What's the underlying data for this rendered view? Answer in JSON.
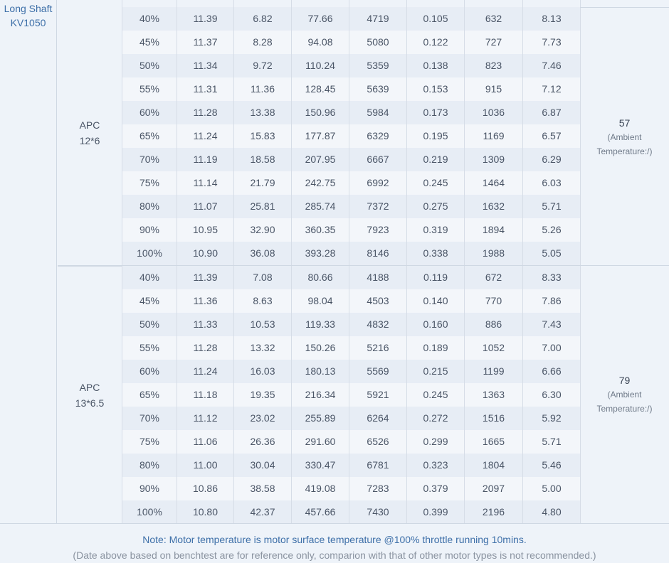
{
  "motor": {
    "line1": "Long Shaft",
    "line2": "KV1050"
  },
  "groups": [
    {
      "prop_line1": "APC",
      "prop_line2": "12*6",
      "temp_value": "57",
      "temp_note_line1": "(Ambient",
      "temp_note_line2": "Temperature:/)",
      "rows": [
        [
          "40%",
          "11.39",
          "6.82",
          "77.66",
          "4719",
          "0.105",
          "632",
          "8.13"
        ],
        [
          "45%",
          "11.37",
          "8.28",
          "94.08",
          "5080",
          "0.122",
          "727",
          "7.73"
        ],
        [
          "50%",
          "11.34",
          "9.72",
          "110.24",
          "5359",
          "0.138",
          "823",
          "7.46"
        ],
        [
          "55%",
          "11.31",
          "11.36",
          "128.45",
          "5639",
          "0.153",
          "915",
          "7.12"
        ],
        [
          "60%",
          "11.28",
          "13.38",
          "150.96",
          "5984",
          "0.173",
          "1036",
          "6.87"
        ],
        [
          "65%",
          "11.24",
          "15.83",
          "177.87",
          "6329",
          "0.195",
          "1169",
          "6.57"
        ],
        [
          "70%",
          "11.19",
          "18.58",
          "207.95",
          "6667",
          "0.219",
          "1309",
          "6.29"
        ],
        [
          "75%",
          "11.14",
          "21.79",
          "242.75",
          "6992",
          "0.245",
          "1464",
          "6.03"
        ],
        [
          "80%",
          "11.07",
          "25.81",
          "285.74",
          "7372",
          "0.275",
          "1632",
          "5.71"
        ],
        [
          "90%",
          "10.95",
          "32.90",
          "360.35",
          "7923",
          "0.319",
          "1894",
          "5.26"
        ],
        [
          "100%",
          "10.90",
          "36.08",
          "393.28",
          "8146",
          "0.338",
          "1988",
          "5.05"
        ]
      ]
    },
    {
      "prop_line1": "APC",
      "prop_line2": "13*6.5",
      "temp_value": "79",
      "temp_note_line1": "(Ambient",
      "temp_note_line2": "Temperature:/)",
      "rows": [
        [
          "40%",
          "11.39",
          "7.08",
          "80.66",
          "4188",
          "0.119",
          "672",
          "8.33"
        ],
        [
          "45%",
          "11.36",
          "8.63",
          "98.04",
          "4503",
          "0.140",
          "770",
          "7.86"
        ],
        [
          "50%",
          "11.33",
          "10.53",
          "119.33",
          "4832",
          "0.160",
          "886",
          "7.43"
        ],
        [
          "55%",
          "11.28",
          "13.32",
          "150.26",
          "5216",
          "0.189",
          "1052",
          "7.00"
        ],
        [
          "60%",
          "11.24",
          "16.03",
          "180.13",
          "5569",
          "0.215",
          "1199",
          "6.66"
        ],
        [
          "65%",
          "11.18",
          "19.35",
          "216.34",
          "5921",
          "0.245",
          "1363",
          "6.30"
        ],
        [
          "70%",
          "11.12",
          "23.02",
          "255.89",
          "6264",
          "0.272",
          "1516",
          "5.92"
        ],
        [
          "75%",
          "11.06",
          "26.36",
          "291.60",
          "6526",
          "0.299",
          "1665",
          "5.71"
        ],
        [
          "80%",
          "11.00",
          "30.04",
          "330.47",
          "6781",
          "0.323",
          "1804",
          "5.46"
        ],
        [
          "90%",
          "10.86",
          "38.58",
          "419.08",
          "7283",
          "0.379",
          "2097",
          "5.00"
        ],
        [
          "100%",
          "10.80",
          "42.37",
          "457.66",
          "7430",
          "0.399",
          "2196",
          "4.80"
        ]
      ]
    }
  ],
  "footer": {
    "note": "Note: Motor temperature is motor surface temperature @100% throttle running 10mins.",
    "disclaimer": "(Date above based on benchtest are for reference only, comparion with that of other motor types is not recommended.)"
  }
}
